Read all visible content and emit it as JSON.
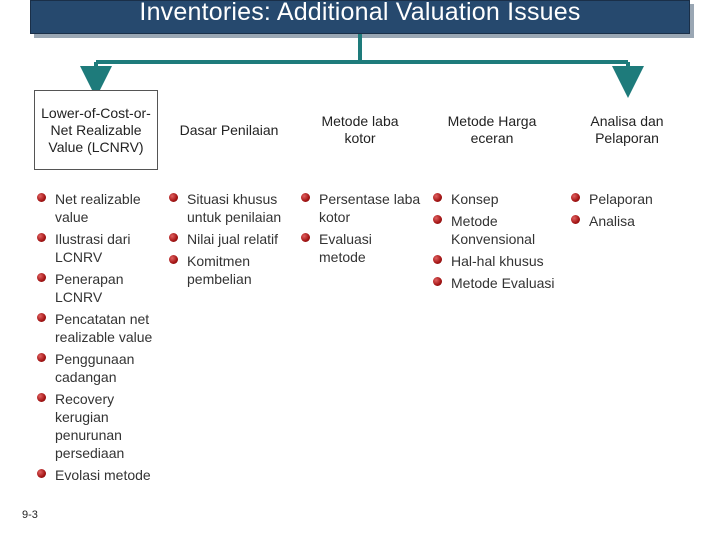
{
  "title": "Inventories: Additional Valuation Issues",
  "slide_number": "9-3",
  "colors": {
    "title_bg": "#26496e",
    "connector": "#1e7b7b",
    "bullet": "#a31414"
  },
  "columns": [
    {
      "header": "Lower-of-Cost-or-Net Realizable Value (LCNRV)",
      "items": [
        "Net realizable value",
        "Ilustrasi dari LCNRV",
        "Penerapan LCNRV",
        "Pencatatan net realizable value",
        "Penggunaan cadangan",
        "Recovery kerugian penurunan persediaan",
        "Evolasi metode"
      ]
    },
    {
      "header": "Dasar Penilaian",
      "items": [
        "Situasi khusus untuk penilaian",
        "Nilai jual relatif",
        "Komitmen pembelian"
      ]
    },
    {
      "header": "Metode laba kotor",
      "items": [
        "Persentase laba kotor",
        "Evaluasi metode"
      ]
    },
    {
      "header": "Metode Harga eceran",
      "items": [
        "Konsep",
        "Metode Konvensional",
        "Hal-hal khusus",
        "Metode Evaluasi"
      ]
    },
    {
      "header": "Analisa dan Pelaporan",
      "items": [
        "Pelaporan",
        "Analisa"
      ]
    }
  ]
}
